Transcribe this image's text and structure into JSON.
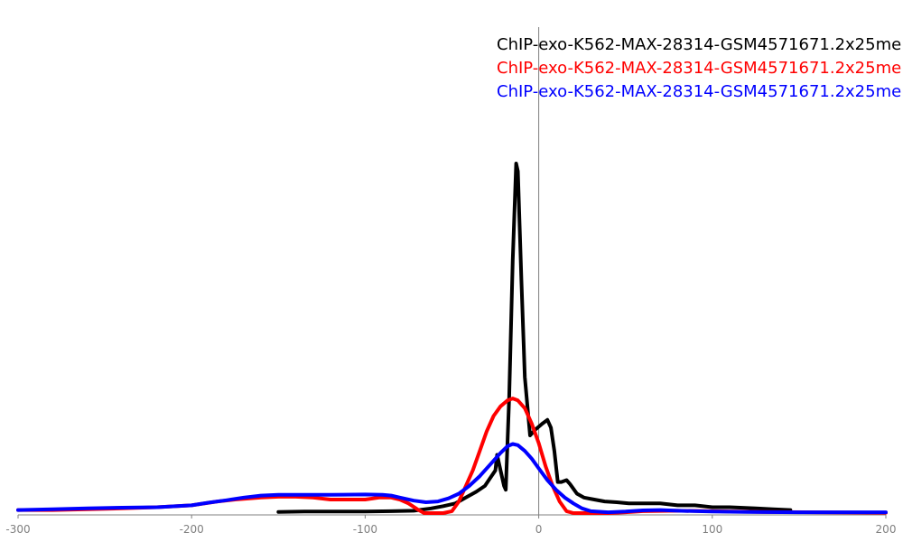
{
  "chart_data": {
    "type": "line",
    "xlim": [
      -300,
      200
    ],
    "ylim": [
      0,
      1
    ],
    "x_ticks": [
      -300,
      -200,
      -100,
      0,
      100,
      200
    ],
    "x_tick_labels": [
      "-300",
      "-200",
      "-100",
      "0",
      "100",
      "200"
    ],
    "grid": false,
    "legend_position": "top-right",
    "zero_line_x": 0,
    "series": [
      {
        "name": "ChIP-exo-K562-MAX-28314-GSM4571671.2x25me",
        "color": "#000000",
        "points": [
          [
            -150,
            0.003
          ],
          [
            -135,
            0.004
          ],
          [
            -120,
            0.004
          ],
          [
            -100,
            0.004
          ],
          [
            -85,
            0.005
          ],
          [
            -72,
            0.006
          ],
          [
            -62,
            0.012
          ],
          [
            -55,
            0.018
          ],
          [
            -48,
            0.025
          ],
          [
            -42,
            0.04
          ],
          [
            -36,
            0.055
          ],
          [
            -31,
            0.07
          ],
          [
            -28,
            0.09
          ],
          [
            -25,
            0.11
          ],
          [
            -24,
            0.15
          ],
          [
            -22,
            0.11
          ],
          [
            -20,
            0.07
          ],
          [
            -19,
            0.06
          ],
          [
            -17,
            0.3
          ],
          [
            -15,
            0.65
          ],
          [
            -13,
            0.9
          ],
          [
            -12,
            0.88
          ],
          [
            -10,
            0.6
          ],
          [
            -8,
            0.35
          ],
          [
            -5,
            0.2
          ],
          [
            -2,
            0.215
          ],
          [
            2,
            0.23
          ],
          [
            5,
            0.24
          ],
          [
            7,
            0.22
          ],
          [
            9,
            0.16
          ],
          [
            11,
            0.08
          ],
          [
            13,
            0.08
          ],
          [
            16,
            0.085
          ],
          [
            18,
            0.075
          ],
          [
            22,
            0.05
          ],
          [
            26,
            0.04
          ],
          [
            32,
            0.035
          ],
          [
            38,
            0.03
          ],
          [
            45,
            0.028
          ],
          [
            52,
            0.025
          ],
          [
            60,
            0.025
          ],
          [
            70,
            0.025
          ],
          [
            80,
            0.02
          ],
          [
            90,
            0.02
          ],
          [
            100,
            0.015
          ],
          [
            110,
            0.015
          ],
          [
            125,
            0.012
          ],
          [
            135,
            0.01
          ],
          [
            145,
            0.008
          ]
        ]
      },
      {
        "name": "ChIP-exo-K562-MAX-28314-GSM4571671.2x25me",
        "color": "#ff0000",
        "points": [
          [
            -300,
            0.008
          ],
          [
            -280,
            0.008
          ],
          [
            -260,
            0.01
          ],
          [
            -240,
            0.012
          ],
          [
            -220,
            0.015
          ],
          [
            -200,
            0.02
          ],
          [
            -185,
            0.03
          ],
          [
            -175,
            0.035
          ],
          [
            -160,
            0.04
          ],
          [
            -150,
            0.042
          ],
          [
            -140,
            0.042
          ],
          [
            -130,
            0.04
          ],
          [
            -120,
            0.035
          ],
          [
            -110,
            0.035
          ],
          [
            -100,
            0.035
          ],
          [
            -92,
            0.04
          ],
          [
            -85,
            0.04
          ],
          [
            -80,
            0.035
          ],
          [
            -75,
            0.025
          ],
          [
            -70,
            0.01
          ],
          [
            -66,
            0.0
          ],
          [
            -60,
            0.0
          ],
          [
            -55,
            0.0
          ],
          [
            -50,
            0.005
          ],
          [
            -46,
            0.03
          ],
          [
            -42,
            0.07
          ],
          [
            -38,
            0.11
          ],
          [
            -34,
            0.16
          ],
          [
            -30,
            0.21
          ],
          [
            -26,
            0.25
          ],
          [
            -22,
            0.275
          ],
          [
            -18,
            0.29
          ],
          [
            -15,
            0.295
          ],
          [
            -12,
            0.29
          ],
          [
            -8,
            0.27
          ],
          [
            -4,
            0.23
          ],
          [
            0,
            0.18
          ],
          [
            4,
            0.12
          ],
          [
            8,
            0.07
          ],
          [
            12,
            0.03
          ],
          [
            16,
            0.005
          ],
          [
            20,
            0.0
          ],
          [
            30,
            0.0
          ],
          [
            40,
            0.0
          ],
          [
            50,
            0.002
          ],
          [
            60,
            0.005
          ],
          [
            80,
            0.006
          ],
          [
            100,
            0.005
          ],
          [
            130,
            0.003
          ],
          [
            160,
            0.002
          ],
          [
            200,
            0.001
          ]
        ]
      },
      {
        "name": "ChIP-exo-K562-MAX-28314-GSM4571671.2x25me",
        "color": "#0000ff",
        "points": [
          [
            -300,
            0.008
          ],
          [
            -280,
            0.01
          ],
          [
            -260,
            0.012
          ],
          [
            -240,
            0.014
          ],
          [
            -220,
            0.015
          ],
          [
            -200,
            0.02
          ],
          [
            -190,
            0.027
          ],
          [
            -180,
            0.033
          ],
          [
            -170,
            0.04
          ],
          [
            -160,
            0.045
          ],
          [
            -150,
            0.047
          ],
          [
            -140,
            0.047
          ],
          [
            -120,
            0.047
          ],
          [
            -100,
            0.048
          ],
          [
            -90,
            0.047
          ],
          [
            -85,
            0.045
          ],
          [
            -80,
            0.04
          ],
          [
            -72,
            0.032
          ],
          [
            -65,
            0.028
          ],
          [
            -58,
            0.03
          ],
          [
            -52,
            0.038
          ],
          [
            -46,
            0.05
          ],
          [
            -40,
            0.07
          ],
          [
            -34,
            0.095
          ],
          [
            -28,
            0.125
          ],
          [
            -22,
            0.155
          ],
          [
            -18,
            0.172
          ],
          [
            -15,
            0.178
          ],
          [
            -12,
            0.175
          ],
          [
            -8,
            0.16
          ],
          [
            -4,
            0.14
          ],
          [
            0,
            0.115
          ],
          [
            5,
            0.085
          ],
          [
            10,
            0.06
          ],
          [
            15,
            0.04
          ],
          [
            20,
            0.025
          ],
          [
            25,
            0.012
          ],
          [
            30,
            0.005
          ],
          [
            40,
            0.002
          ],
          [
            50,
            0.004
          ],
          [
            60,
            0.007
          ],
          [
            70,
            0.008
          ],
          [
            80,
            0.006
          ],
          [
            100,
            0.004
          ],
          [
            120,
            0.003
          ],
          [
            150,
            0.002
          ],
          [
            180,
            0.002
          ],
          [
            200,
            0.002
          ]
        ]
      }
    ]
  }
}
